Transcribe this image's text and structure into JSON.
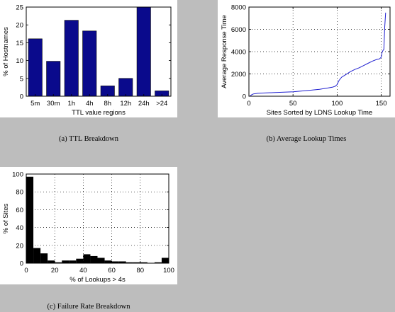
{
  "chart_data": [
    {
      "type": "bar",
      "caption": "(a) TTL Breakdown",
      "xlabel": "TTL value regions",
      "ylabel": "% of Hostnames",
      "categories": [
        "5m",
        "30m",
        "1h",
        "4h",
        "8h",
        "12h",
        "24h",
        ">24"
      ],
      "values": [
        16.1,
        9.8,
        21.3,
        18.3,
        2.9,
        5.0,
        25.0,
        1.5
      ],
      "ylim": [
        0,
        25
      ],
      "yticks": [
        "0",
        "5",
        "10",
        "15",
        "20",
        "25"
      ],
      "color": "#0a0a8c",
      "grid": false
    },
    {
      "type": "line",
      "caption": "(b) Average Lookup Times",
      "xlabel": "Sites Sorted by LDNS Lookup Time",
      "ylabel": "Average Response Time",
      "xlim": [
        0,
        160
      ],
      "ylim": [
        0,
        8000
      ],
      "xticks": [
        "0",
        "50",
        "100",
        "150"
      ],
      "yticks": [
        "0",
        "2000",
        "4000",
        "6000",
        "8000"
      ],
      "grid": true,
      "color": "#1f1fd0",
      "series": [
        {
          "x": [
            1,
            3,
            5,
            10,
            20,
            30,
            40,
            50,
            60,
            70,
            80,
            90,
            95,
            98,
            100,
            102,
            105,
            110,
            115,
            120,
            125,
            130,
            135,
            140,
            145,
            148,
            150,
            151,
            152,
            153,
            154,
            155
          ],
          "y": [
            0,
            120,
            200,
            260,
            300,
            330,
            360,
            400,
            470,
            540,
            620,
            740,
            820,
            900,
            1050,
            1400,
            1700,
            1950,
            2200,
            2400,
            2550,
            2750,
            2950,
            3150,
            3300,
            3350,
            3500,
            3950,
            4100,
            4200,
            6200,
            7500
          ]
        }
      ]
    },
    {
      "type": "bar",
      "caption": "(c) Failure Rate Breakdown",
      "xlabel": "% of Lookups > 4s",
      "ylabel": "% of Sites",
      "bin_edges": [
        0,
        5,
        10,
        15,
        20,
        25,
        30,
        35,
        40,
        45,
        50,
        55,
        60,
        65,
        70,
        75,
        80,
        85,
        90,
        95,
        100
      ],
      "values": [
        97,
        17,
        11,
        3,
        1,
        3,
        3,
        5,
        10,
        8,
        6,
        3,
        2,
        2,
        1,
        1,
        1,
        0,
        1,
        6
      ],
      "xlim": [
        0,
        100
      ],
      "ylim": [
        0,
        100
      ],
      "xticks": [
        "0",
        "20",
        "40",
        "60",
        "80",
        "100"
      ],
      "yticks": [
        "0",
        "20",
        "40",
        "60",
        "80",
        "100"
      ],
      "grid": true,
      "color": "#000000"
    }
  ]
}
